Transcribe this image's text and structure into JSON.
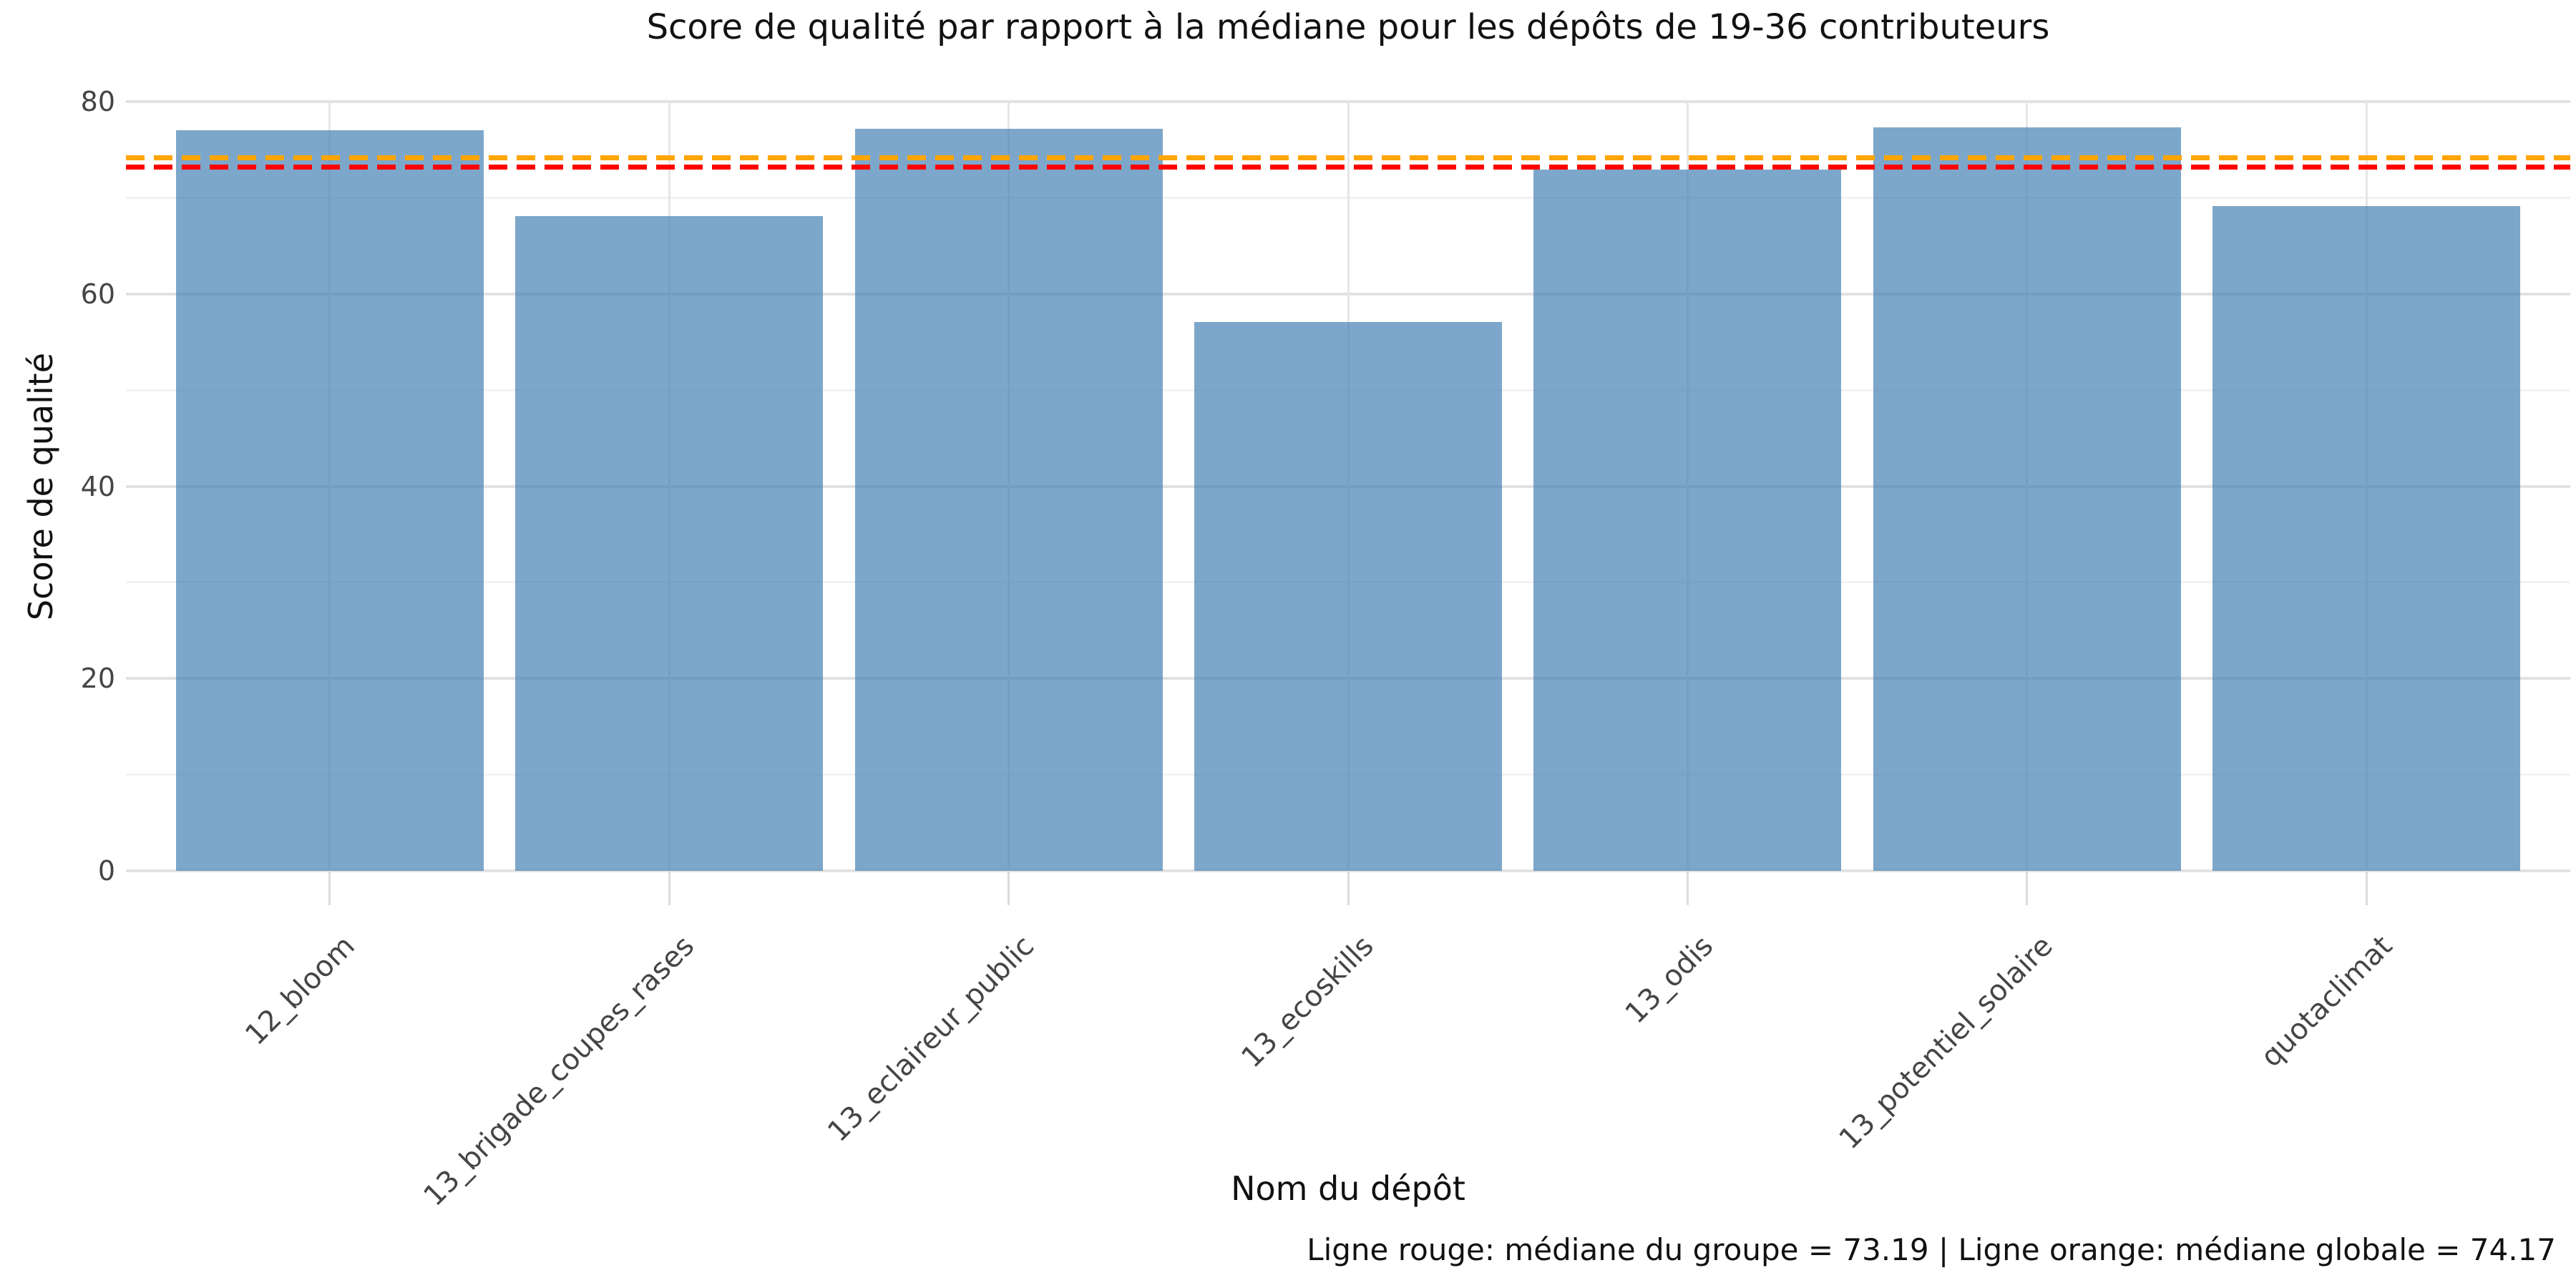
{
  "chart_data": {
    "type": "bar",
    "title": "Score de qualité par rapport à la médiane pour les dépôts de 19-36 contributeurs",
    "xlabel": "Nom du dépôt",
    "ylabel": "Score de qualité",
    "categories": [
      "12_bloom",
      "13_brigade_coupes_rases",
      "13_eclaireur_public",
      "13_ecoskills",
      "13_odis",
      "13_potentiel_solaire",
      "quotaclimat"
    ],
    "values": [
      77.0,
      68.1,
      77.2,
      57.1,
      72.9,
      77.3,
      69.1
    ],
    "ylim": [
      0,
      80
    ],
    "yticks": [
      0,
      20,
      40,
      60,
      80
    ],
    "yticks_minor": [
      10,
      30,
      50,
      70
    ],
    "grid": "horizontal major+minor gridlines on, vertical gridlines at category centers",
    "legend_position": "none",
    "bar_color": "rgba(70,130,180,0.7)",
    "reference_lines": [
      {
        "name": "médiane du groupe",
        "value": 73.19,
        "color": "#ff0000",
        "style": "dashed"
      },
      {
        "name": "médiane globale",
        "value": 74.17,
        "color": "#ffa500",
        "style": "dashed"
      }
    ],
    "caption": "Ligne rouge: médiane du groupe = 73.19 | Ligne orange: médiane globale = 74.17"
  }
}
